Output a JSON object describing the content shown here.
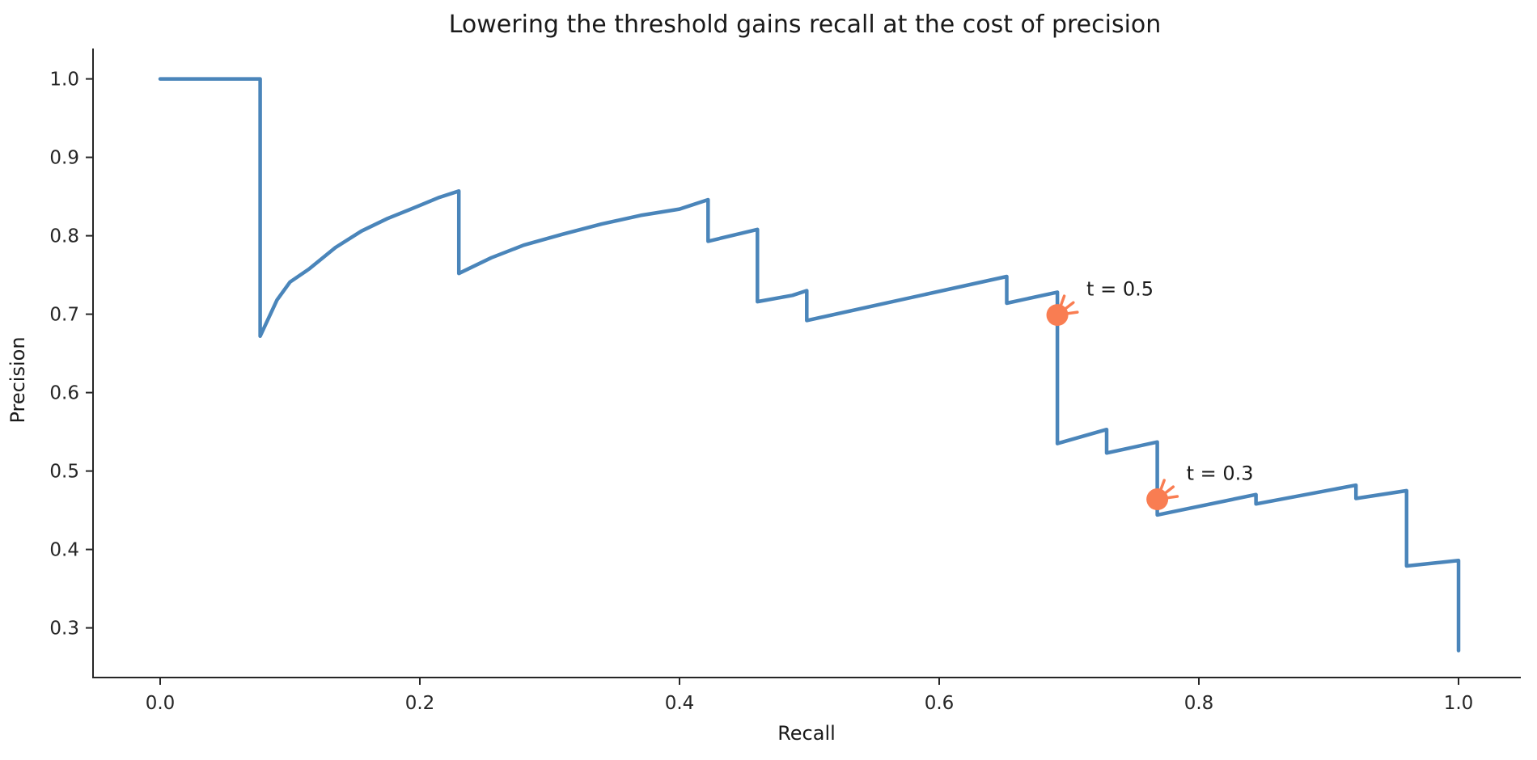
{
  "figure": {
    "background": "#ffffff",
    "text_color": "#1a1a1a",
    "axis_color": "#262626"
  },
  "chart_data": {
    "type": "line",
    "title": "Lowering the threshold gains recall at the cost of precision",
    "xlabel": "Recall",
    "ylabel": "Precision",
    "x_ticks": [
      0.0,
      0.2,
      0.4,
      0.6,
      0.8,
      1.0
    ],
    "x_tick_labels": [
      "0.0",
      "0.2",
      "0.4",
      "0.6",
      "0.8",
      "1.0"
    ],
    "y_ticks": [
      1.0,
      0.9,
      0.8,
      0.7,
      0.6,
      0.5,
      0.4,
      0.3
    ],
    "y_tick_labels": [
      "1.0",
      "0.9",
      "0.8",
      "0.7",
      "0.6",
      "0.5",
      "0.4",
      "0.3"
    ],
    "xlim": [
      -0.052,
      1.048
    ],
    "ylim": [
      0.237,
      1.039
    ],
    "grid": false,
    "legend": false,
    "line_color": "#4a85ba",
    "accent_color": "#f97d52",
    "curve_points": [
      [
        0.0,
        1.0
      ],
      [
        0.077,
        1.0
      ],
      [
        0.077,
        0.672
      ],
      [
        0.09,
        0.718
      ],
      [
        0.1,
        0.741
      ],
      [
        0.115,
        0.758
      ],
      [
        0.135,
        0.785
      ],
      [
        0.155,
        0.806
      ],
      [
        0.175,
        0.822
      ],
      [
        0.196,
        0.836
      ],
      [
        0.215,
        0.849
      ],
      [
        0.23,
        0.857
      ],
      [
        0.23,
        0.752
      ],
      [
        0.255,
        0.772
      ],
      [
        0.28,
        0.788
      ],
      [
        0.31,
        0.802
      ],
      [
        0.34,
        0.815
      ],
      [
        0.37,
        0.826
      ],
      [
        0.4,
        0.834
      ],
      [
        0.422,
        0.846
      ],
      [
        0.422,
        0.793
      ],
      [
        0.46,
        0.808
      ],
      [
        0.46,
        0.716
      ],
      [
        0.487,
        0.724
      ],
      [
        0.498,
        0.73
      ],
      [
        0.498,
        0.692
      ],
      [
        0.652,
        0.748
      ],
      [
        0.652,
        0.714
      ],
      [
        0.691,
        0.728
      ],
      [
        0.691,
        0.535
      ],
      [
        0.729,
        0.553
      ],
      [
        0.729,
        0.523
      ],
      [
        0.768,
        0.537
      ],
      [
        0.768,
        0.444
      ],
      [
        0.844,
        0.47
      ],
      [
        0.844,
        0.458
      ],
      [
        0.921,
        0.482
      ],
      [
        0.921,
        0.465
      ],
      [
        0.96,
        0.475
      ],
      [
        0.96,
        0.379
      ],
      [
        1.0,
        0.386
      ],
      [
        1.0,
        0.271
      ]
    ],
    "annotations": [
      {
        "label": "t = 0.5",
        "recall": 0.691,
        "precision": 0.699
      },
      {
        "label": "t = 0.3",
        "recall": 0.768,
        "precision": 0.464
      }
    ]
  }
}
